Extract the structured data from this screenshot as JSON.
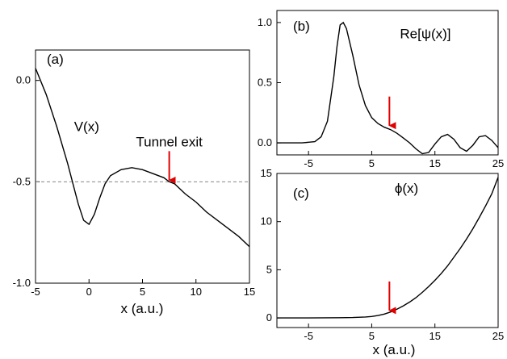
{
  "chart_data": [
    {
      "panel": "(a)",
      "type": "line",
      "xlabel": "x (a.u.)",
      "ylabel": "",
      "xlim": [
        -5,
        15
      ],
      "ylim": [
        -1.0,
        0.15
      ],
      "xticks": [
        -5,
        0,
        5,
        10,
        15
      ],
      "xticklabels": [
        "-5",
        "0",
        "5",
        "10",
        "15"
      ],
      "yticks": [
        0.0,
        -0.5,
        -1.0
      ],
      "yticklabels": [
        "0.0",
        "-0.5",
        "-1.0"
      ],
      "grid": false,
      "series": [
        {
          "name": "V(x)",
          "color": "#000000",
          "x": [
            -5,
            -4,
            -3,
            -2,
            -1.5,
            -1,
            -0.5,
            0,
            0.5,
            1,
            1.5,
            2,
            3,
            4,
            5,
            6,
            7,
            7.5,
            8,
            9,
            10,
            11,
            12,
            13,
            14,
            15
          ],
          "y": [
            0.06,
            -0.07,
            -0.23,
            -0.41,
            -0.51,
            -0.61,
            -0.69,
            -0.71,
            -0.66,
            -0.58,
            -0.51,
            -0.47,
            -0.44,
            -0.43,
            -0.44,
            -0.46,
            -0.48,
            -0.5,
            -0.51,
            -0.56,
            -0.6,
            -0.65,
            -0.69,
            -0.73,
            -0.77,
            -0.82
          ]
        }
      ],
      "hline": {
        "y": -0.5,
        "style": "dashed",
        "color": "#888888"
      },
      "annotations": [
        {
          "text": "V(x)",
          "x": -1.4,
          "y": -0.25
        },
        {
          "text": "Tunnel exit",
          "x": 7.5,
          "y": -0.38,
          "arrow_to": [
            7.5,
            -0.5
          ],
          "color": "#e00000"
        }
      ]
    },
    {
      "panel": "(b)",
      "type": "line",
      "xlabel": "",
      "ylabel": "",
      "xlim": [
        -10,
        25
      ],
      "ylim": [
        -0.1,
        1.1
      ],
      "xticks": [
        -5,
        5,
        15,
        25
      ],
      "xticklabels": [
        "-5",
        "5",
        "15",
        "25"
      ],
      "yticks": [
        0.0,
        0.5,
        1.0
      ],
      "yticklabels": [
        "0.0",
        "0.5",
        "1.0"
      ],
      "grid": false,
      "series": [
        {
          "name": "Re[ψ(x)]",
          "color": "#000000",
          "x": [
            -10,
            -6,
            -4,
            -3,
            -2,
            -1,
            -0.5,
            0,
            0.5,
            1,
            2,
            3,
            4,
            5,
            6,
            7,
            8,
            9,
            10,
            11,
            12,
            13,
            14,
            15,
            16,
            17,
            18,
            19,
            20,
            21,
            22,
            23,
            24,
            25
          ],
          "y": [
            0.0,
            0.0,
            0.01,
            0.05,
            0.18,
            0.55,
            0.8,
            0.98,
            1.0,
            0.95,
            0.73,
            0.48,
            0.31,
            0.21,
            0.16,
            0.13,
            0.11,
            0.08,
            0.04,
            0.0,
            -0.05,
            -0.09,
            -0.08,
            -0.01,
            0.05,
            0.07,
            0.03,
            -0.04,
            -0.07,
            -0.02,
            0.05,
            0.06,
            0.02,
            -0.04
          ]
        }
      ],
      "annotations": [
        {
          "text": "Re[ψ(x)]",
          "x": 13.5,
          "y": 0.87
        },
        {
          "arrow_to": [
            7.8,
            0.13
          ],
          "color": "#e00000"
        }
      ]
    },
    {
      "panel": "(c)",
      "type": "line",
      "xlabel": "x (a.u.)",
      "ylabel": "",
      "xlim": [
        -10,
        25
      ],
      "ylim": [
        -1,
        15
      ],
      "xticks": [
        -5,
        5,
        15,
        25
      ],
      "xticklabels": [
        "-5",
        "5",
        "15",
        "25"
      ],
      "yticks": [
        0,
        5,
        10,
        15
      ],
      "yticklabels": [
        "0",
        "5",
        "10",
        "15"
      ],
      "grid": false,
      "series": [
        {
          "name": "ϕ(x)",
          "color": "#000000",
          "x": [
            -10,
            -5,
            0,
            2,
            4,
            5,
            6,
            7,
            8,
            9,
            10,
            11,
            12,
            13,
            14,
            15,
            16,
            17,
            18,
            19,
            20,
            21,
            22,
            23,
            24,
            25
          ],
          "y": [
            0,
            0,
            0.02,
            0.04,
            0.1,
            0.15,
            0.25,
            0.4,
            0.62,
            0.9,
            1.25,
            1.65,
            2.1,
            2.65,
            3.25,
            3.9,
            4.6,
            5.4,
            6.3,
            7.2,
            8.2,
            9.25,
            10.4,
            11.6,
            12.9,
            14.6
          ]
        }
      ],
      "annotations": [
        {
          "text": "ϕ(x)",
          "x": 10.5,
          "y": 13
        },
        {
          "arrow_to": [
            7.8,
            0.6
          ],
          "color": "#e00000"
        }
      ]
    }
  ]
}
